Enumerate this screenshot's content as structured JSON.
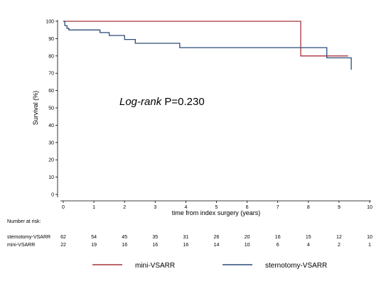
{
  "chart_data": {
    "type": "line",
    "xlabel": "time from index surgery (years)",
    "ylabel": "Survival (%)",
    "xlim": [
      0,
      10
    ],
    "ylim": [
      0,
      100
    ],
    "x_ticks": [
      "0",
      "1",
      "2",
      "3",
      "4",
      "5",
      "6",
      "7",
      "8",
      "9",
      "10"
    ],
    "y_ticks": [
      "0",
      "10",
      "20",
      "30",
      "40",
      "50",
      "60",
      "70",
      "80",
      "90",
      "100"
    ],
    "grid": false,
    "annotation": {
      "italic": "Log-rank",
      "plain": " P=0.230"
    },
    "legend": {
      "position": "bottom",
      "entries": [
        "mini-VSARR",
        "sternotomy-VSARR"
      ]
    },
    "series": [
      {
        "name": "mini-VSARR",
        "color": "#a8323c",
        "step_points": [
          [
            0,
            100
          ],
          [
            7.75,
            100
          ],
          [
            7.75,
            80
          ],
          [
            9.3,
            80
          ]
        ]
      },
      {
        "name": "sternotomy-VSARR",
        "color": "#2b4a78",
        "step_points": [
          [
            0,
            100
          ],
          [
            0.05,
            100
          ],
          [
            0.05,
            97.5
          ],
          [
            0.12,
            97.5
          ],
          [
            0.12,
            96
          ],
          [
            0.18,
            96
          ],
          [
            0.18,
            95
          ],
          [
            1.2,
            95
          ],
          [
            1.2,
            93.5
          ],
          [
            1.5,
            93.5
          ],
          [
            1.5,
            91.8
          ],
          [
            2.0,
            91.8
          ],
          [
            2.0,
            89.5
          ],
          [
            2.35,
            89.5
          ],
          [
            2.35,
            87.3
          ],
          [
            3.8,
            87.3
          ],
          [
            3.8,
            84.8
          ],
          [
            8.6,
            84.8
          ],
          [
            8.6,
            78.9
          ],
          [
            9.4,
            78.9
          ],
          [
            9.4,
            72
          ]
        ]
      }
    ],
    "risk_table": {
      "title": "Number at risk:",
      "times": [
        0,
        1,
        2,
        3,
        4,
        5,
        6,
        7,
        8,
        9,
        10
      ],
      "rows": [
        {
          "label": "sternotomy-VSARR",
          "counts": [
            "62",
            "54",
            "45",
            "35",
            "31",
            "26",
            "20",
            "16",
            "15",
            "12",
            "10"
          ]
        },
        {
          "label": "mini-VSARR",
          "counts": [
            "22",
            "19",
            "16",
            "16",
            "16",
            "14",
            "10",
            "6",
            "4",
            "2",
            "1"
          ]
        }
      ]
    }
  }
}
